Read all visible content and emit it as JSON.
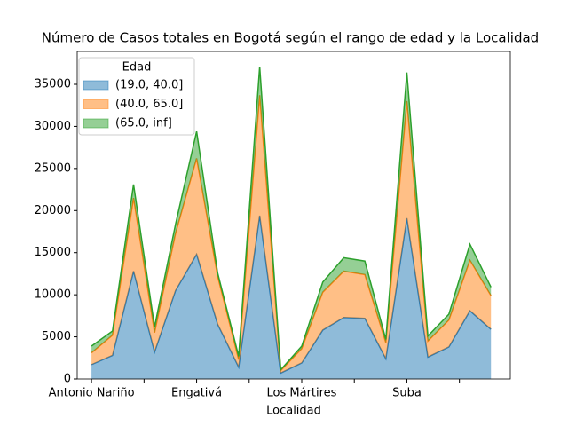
{
  "chart_data": {
    "type": "area",
    "title": "Número de Casos totales en Bogotá según el rango de edad y la Localidad",
    "x_label": "Localidad",
    "categories": [
      "Antonio Nariño",
      null,
      null,
      null,
      null,
      "Engativá",
      null,
      null,
      null,
      null,
      "Los Mártires",
      null,
      null,
      null,
      null,
      "Suba",
      null,
      null,
      null,
      null
    ],
    "xlim": [
      -0.68,
      19.92
    ],
    "xticks": [
      0,
      2.5,
      5,
      7.5,
      10,
      12.5,
      15,
      17.5
    ],
    "ylim": [
      0,
      38900
    ],
    "yticks": [
      0,
      5000,
      10000,
      15000,
      20000,
      25000,
      30000,
      35000
    ],
    "stacked": true,
    "legend_title": "Edad",
    "legend": "upper left",
    "series": [
      {
        "name": "(19.0, 40.0]",
        "color": "#1f77b4",
        "values": [
          1700,
          2800,
          12800,
          3200,
          10500,
          14800,
          6500,
          1400,
          19400,
          700,
          1900,
          5800,
          7300,
          7200,
          2400,
          19100,
          2600,
          3800,
          8100,
          5900
        ]
      },
      {
        "name": "(40.0, 65.0]",
        "color": "#ff7f0e",
        "values": [
          1400,
          2400,
          8700,
          2300,
          6800,
          11400,
          5700,
          900,
          14300,
          300,
          1700,
          4500,
          5500,
          5200,
          1900,
          13900,
          1900,
          3200,
          6000,
          4000
        ]
      },
      {
        "name": "(65.0, inf]",
        "color": "#2ca02c",
        "values": [
          800,
          500,
          1600,
          700,
          1100,
          3200,
          400,
          400,
          3400,
          100,
          300,
          1200,
          1600,
          1600,
          400,
          3400,
          600,
          700,
          1900,
          1000
        ]
      }
    ]
  }
}
